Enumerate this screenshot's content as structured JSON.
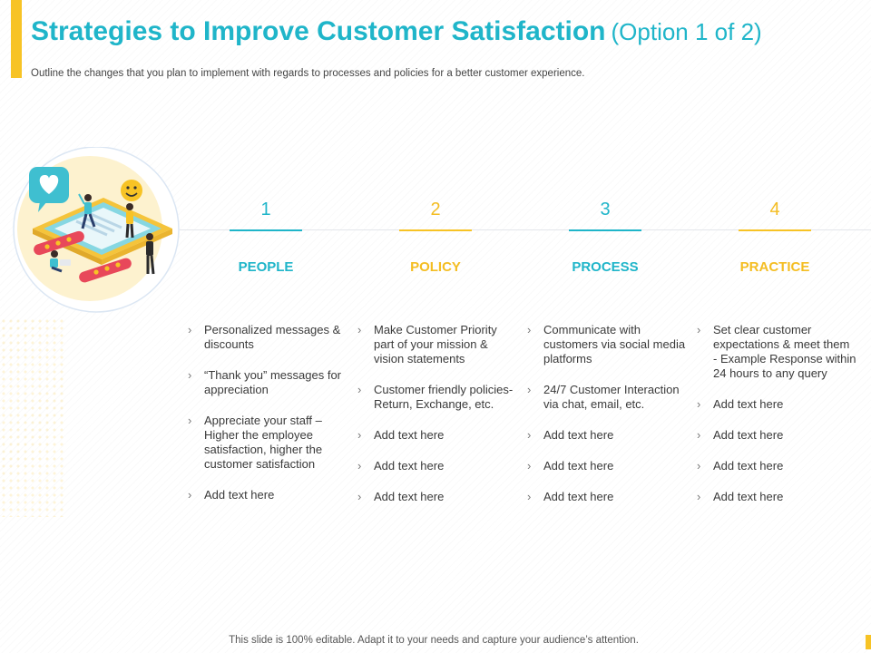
{
  "header": {
    "title": "Strategies to Improve Customer Satisfaction",
    "option": "(Option 1 of 2)",
    "subtitle": "Outline the changes that you plan to implement with regards to processes and policies for a better customer experience."
  },
  "colors": {
    "teal": "#1fb5c9",
    "yellow": "#f7c325"
  },
  "illustration": {
    "icons": [
      "heart-chat-icon",
      "smiley-emoji-icon",
      "stars-badge-icon"
    ]
  },
  "columns": [
    {
      "number": "1",
      "heading": "PEOPLE",
      "items": [
        "Personalized messages & discounts",
        "“Thank you” messages for appreciation",
        "Appreciate your staff – Higher the employee satisfaction, higher the customer satisfaction",
        "Add text here"
      ]
    },
    {
      "number": "2",
      "heading": "POLICY",
      "items": [
        "Make Customer Priority part of your mission & vision statements",
        "Customer friendly policies- Return, Exchange, etc.",
        "Add text here",
        "Add text here",
        "Add text here"
      ]
    },
    {
      "number": "3",
      "heading": "PROCESS",
      "items": [
        "Communicate with customers via social media platforms",
        "24/7 Customer Interaction via chat, email, etc.",
        "Add text here",
        "Add text here",
        "Add text here"
      ]
    },
    {
      "number": "4",
      "heading": "PRACTICE",
      "items": [
        "Set clear customer expectations & meet them - Example Response within 24 hours to any query",
        "Add text here",
        "Add text here",
        "Add text here",
        "Add text here"
      ]
    }
  ],
  "footer": {
    "text": "This slide is 100% editable. Adapt it to your needs and capture your audience’s attention."
  }
}
